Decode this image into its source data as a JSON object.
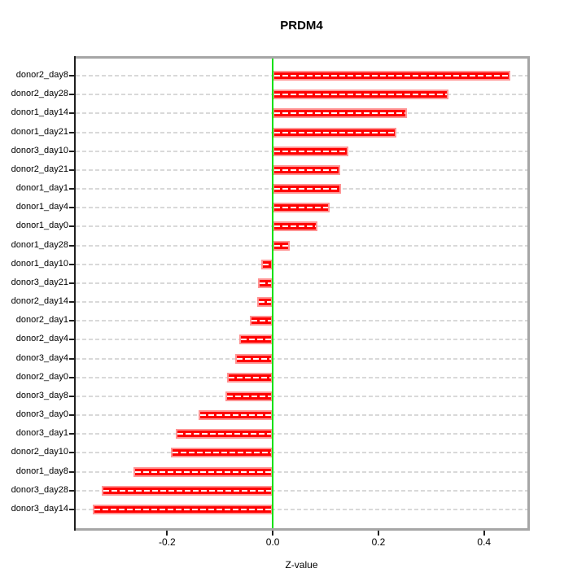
{
  "title": "PRDM4",
  "colors": {
    "bar_fill": "#ff0000",
    "bar_border": "#ff9494",
    "bar_inner_dash": "#ffffff",
    "zero_line": "#00e000",
    "gridline": "#d9d9d9",
    "box_border": "#a6a6a6",
    "axis": "#1f1f1f",
    "text": "#000000",
    "background": "#ffffff"
  },
  "chart_data": {
    "type": "bar",
    "orientation": "horizontal",
    "title": "PRDM4",
    "xlabel": "Z-value",
    "ylabel": "",
    "grid": "dashed horizontal line per category",
    "zero_reference_line": true,
    "legend": "none",
    "xlim": [
      -0.373,
      0.482
    ],
    "x_ticks": [
      -0.2,
      0.0,
      0.2,
      0.4
    ],
    "x_tick_labels": [
      "-0.2",
      "0.0",
      "0.2",
      "0.4"
    ],
    "categories": [
      "donor2_day8",
      "donor2_day28",
      "donor1_day14",
      "donor1_day21",
      "donor3_day10",
      "donor2_day21",
      "donor1_day1",
      "donor1_day4",
      "donor1_day0",
      "donor1_day28",
      "donor1_day10",
      "donor3_day21",
      "donor2_day14",
      "donor2_day1",
      "donor2_day4",
      "donor3_day4",
      "donor2_day0",
      "donor3_day8",
      "donor3_day0",
      "donor3_day1",
      "donor2_day10",
      "donor1_day8",
      "donor3_day28",
      "donor3_day14"
    ],
    "values": [
      0.45,
      0.333,
      0.254,
      0.234,
      0.143,
      0.128,
      0.129,
      0.108,
      0.084,
      0.032,
      -0.021,
      -0.028,
      -0.029,
      -0.044,
      -0.064,
      -0.071,
      -0.086,
      -0.09,
      -0.141,
      -0.183,
      -0.193,
      -0.263,
      -0.324,
      -0.341
    ]
  }
}
